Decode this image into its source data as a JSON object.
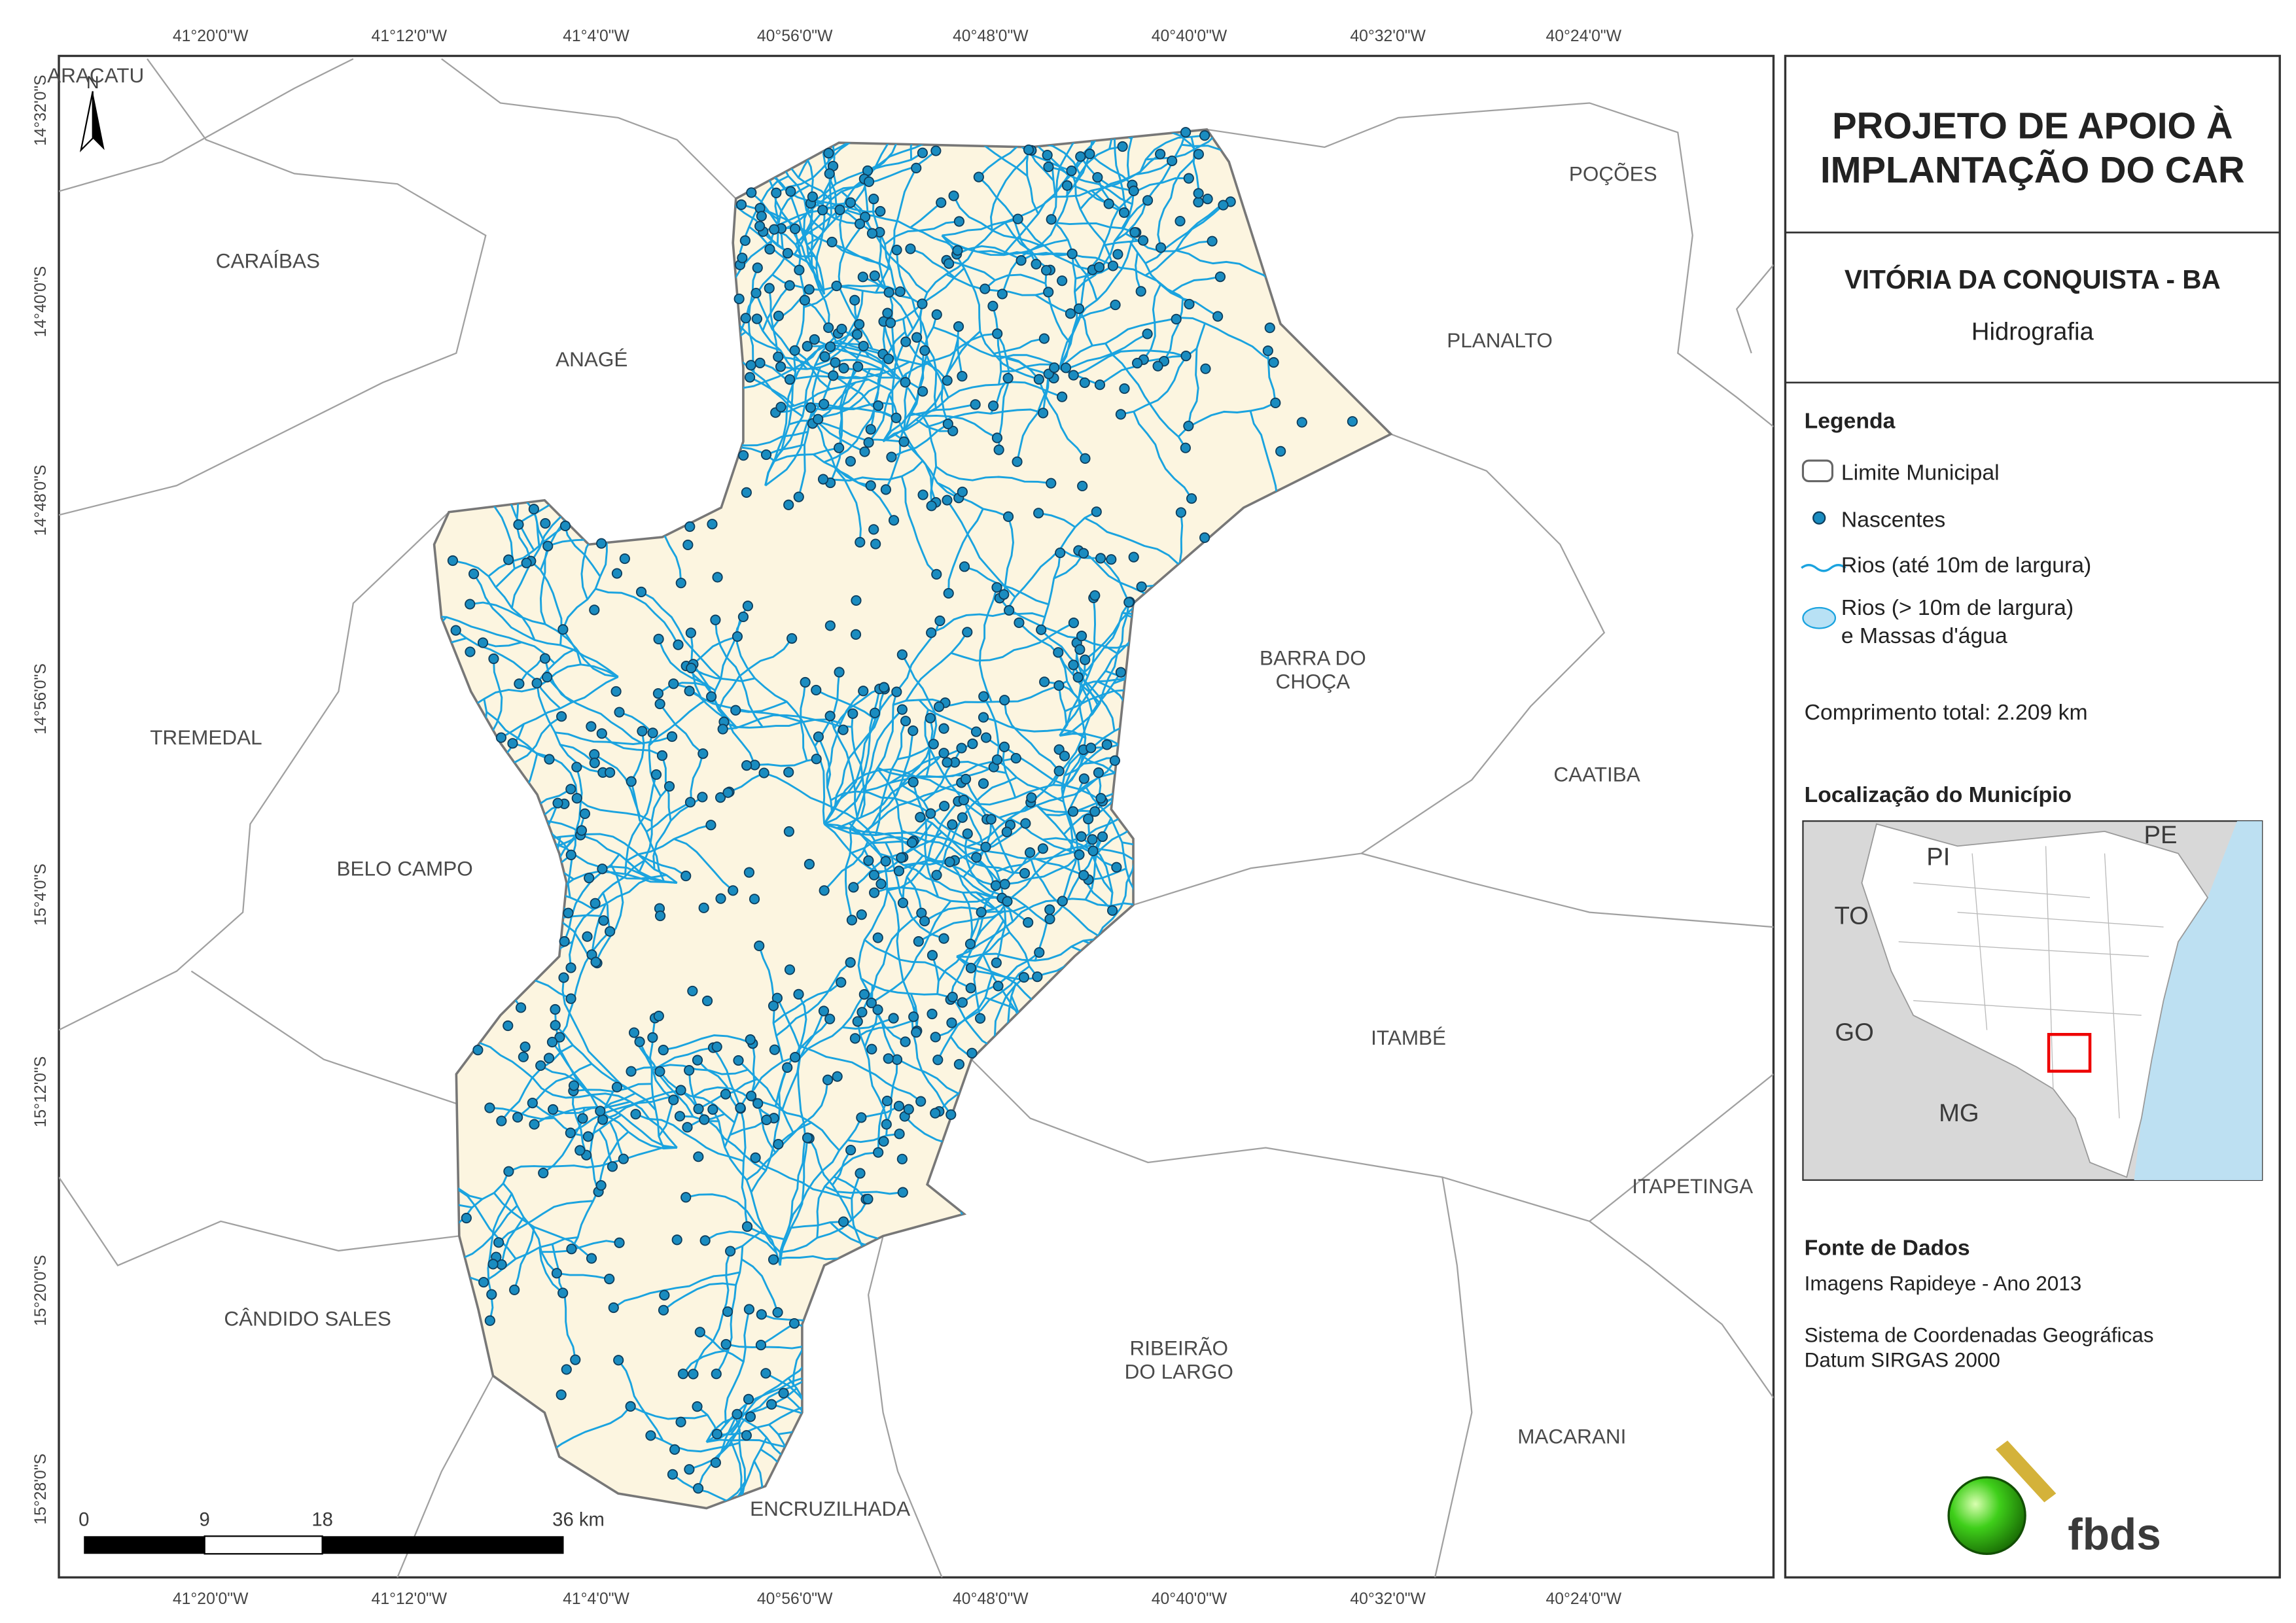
{
  "map": {
    "longitude_labels": [
      "41°20'0\"W",
      "41°12'0\"W",
      "41°4'0\"W",
      "40°56'0\"W",
      "40°48'0\"W",
      "40°40'0\"W",
      "40°32'0\"W",
      "40°24'0\"W"
    ],
    "latitude_labels": [
      "14°32'0\"S",
      "14°40'0\"S",
      "14°48'0\"S",
      "14°56'0\"S",
      "15°4'0\"S",
      "15°12'0\"S",
      "15°20'0\"S",
      "15°28'0\"S"
    ],
    "north_label": "N",
    "municipalities": [
      [
        "ARACATU"
      ],
      [
        "CARAÍBAS"
      ],
      [
        "ANAGÉ"
      ],
      [
        "POÇÕES"
      ],
      [
        "PLANALTO"
      ],
      [
        "BARRA DO",
        "CHOÇA"
      ],
      [
        "TREMEDAL"
      ],
      [
        "CAATIBA"
      ],
      [
        "BELO CAMPO"
      ],
      [
        "ITAMBÉ"
      ],
      [
        "ITAPETINGA"
      ],
      [
        "CÂNDIDO SALES"
      ],
      [
        "RIBEIRÃO",
        "DO LARGO"
      ],
      [
        "MACARANI"
      ],
      [
        "ENCRUZILHADA"
      ]
    ],
    "scale_bar_labels": [
      "0",
      "9",
      "18",
      "36 km"
    ]
  },
  "panel": {
    "title": [
      "PROJETO DE APOIO À",
      "IMPLANTAÇÃO DO CAR"
    ],
    "subtitle": "VITÓRIA DA CONQUISTA - BA",
    "theme": "Hidrografia",
    "legend": {
      "title": "Legenda",
      "items": [
        [
          "Limite Municipal"
        ],
        [
          "Nascentes"
        ],
        [
          "Rios (até 10m de largura)"
        ],
        [
          "Rios (> 10m de largura)",
          "e Massas d'água"
        ]
      ]
    },
    "total_length": "Comprimento total:  2.209 km",
    "location": {
      "title": "Localização do Município",
      "labels": [
        "PI",
        "PE",
        "TO",
        "GO",
        "MG"
      ]
    },
    "sources": {
      "title": "Fonte de Dados",
      "lines": [
        "Imagens Rapideye - Ano 2013",
        "Sistema de Coordenadas Geográficas",
        "Datum SIRGAS 2000"
      ]
    },
    "logo": "fbds"
  }
}
